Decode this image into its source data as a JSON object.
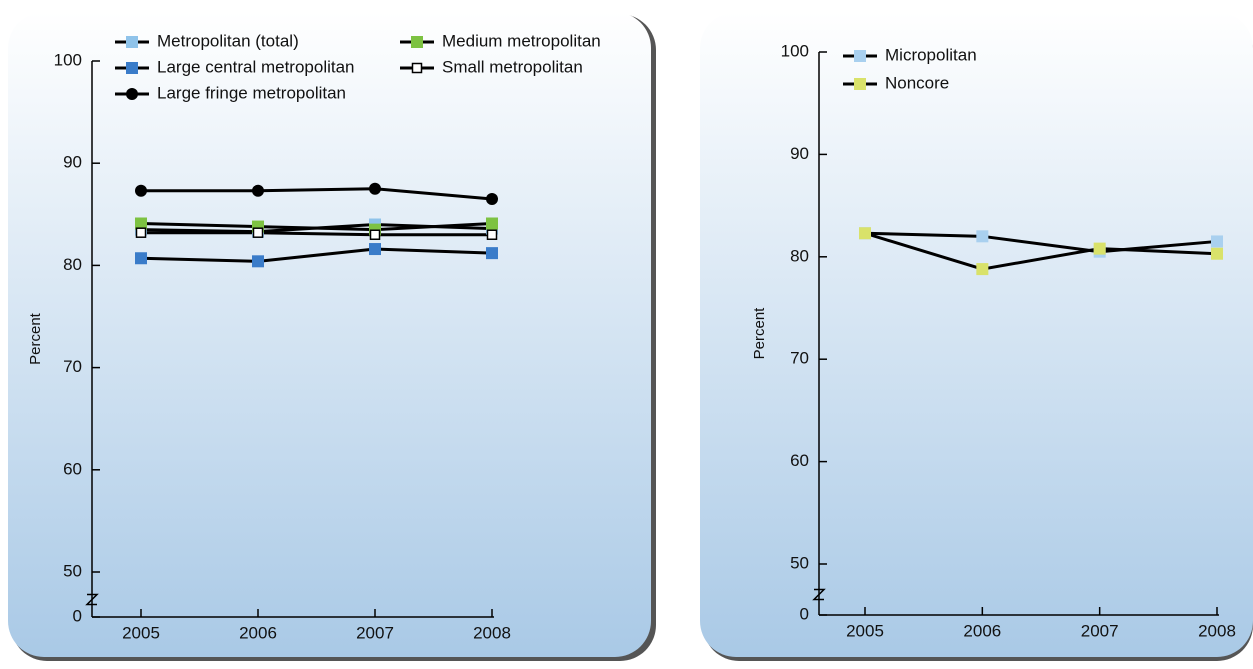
{
  "chart_data": [
    {
      "type": "line",
      "y_label": "Percent",
      "x": [
        "2005",
        "2006",
        "2007",
        "2008"
      ],
      "ylim": [
        0,
        100
      ],
      "yticks": [
        0,
        50,
        60,
        70,
        80,
        90,
        100
      ],
      "axis_break": true,
      "line_color": "#000000",
      "series": [
        {
          "name": "Metropolitan (total)",
          "color": "#8fc3ea",
          "marker": "square",
          "values": [
            83.5,
            83.3,
            84.0,
            83.6
          ]
        },
        {
          "name": "Large central metropolitan",
          "color": "#3a7cc9",
          "marker": "square",
          "values": [
            80.7,
            80.4,
            81.6,
            81.2
          ]
        },
        {
          "name": "Large fringe metropolitan",
          "color": "#000000",
          "marker": "circle",
          "values": [
            87.3,
            87.3,
            87.5,
            86.5
          ]
        },
        {
          "name": "Medium metropolitan",
          "color": "#7dc242",
          "marker": "square",
          "values": [
            84.1,
            83.8,
            83.5,
            84.1
          ]
        },
        {
          "name": "Small metropolitan",
          "color": "#ffffff",
          "marker": "square",
          "values": [
            83.2,
            83.2,
            83.0,
            83.0
          ]
        }
      ]
    },
    {
      "type": "line",
      "y_label": "Percent",
      "x": [
        "2005",
        "2006",
        "2007",
        "2008"
      ],
      "ylim": [
        0,
        100
      ],
      "yticks": [
        0,
        50,
        60,
        70,
        80,
        90,
        100
      ],
      "axis_break": true,
      "line_color": "#000000",
      "series": [
        {
          "name": "Micropolitan",
          "color": "#a9d0ef",
          "marker": "square",
          "values": [
            82.3,
            82.0,
            80.5,
            81.5
          ]
        },
        {
          "name": "Noncore",
          "color": "#d9e26a",
          "marker": "square",
          "values": [
            82.3,
            78.8,
            80.8,
            80.3
          ]
        }
      ]
    }
  ]
}
